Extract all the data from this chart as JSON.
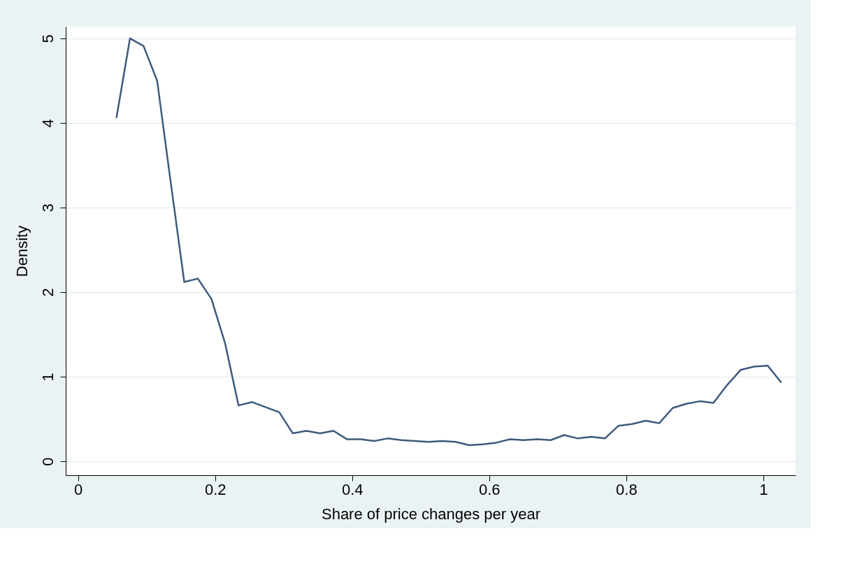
{
  "chart_data": {
    "type": "line",
    "xlabel": "Share of price changes per year",
    "ylabel": "Density",
    "x": [
      0.056,
      0.0758,
      0.0956,
      0.1154,
      0.1352,
      0.155,
      0.1748,
      0.1946,
      0.2144,
      0.2342,
      0.254,
      0.2738,
      0.2936,
      0.3134,
      0.3332,
      0.353,
      0.3728,
      0.3926,
      0.4124,
      0.4322,
      0.452,
      0.4718,
      0.4916,
      0.5114,
      0.5312,
      0.551,
      0.5708,
      0.5906,
      0.6104,
      0.6302,
      0.65,
      0.6698,
      0.6896,
      0.7094,
      0.7292,
      0.749,
      0.7688,
      0.7886,
      0.8084,
      0.8282,
      0.848,
      0.8678,
      0.8876,
      0.9074,
      0.9272,
      0.947,
      0.9668,
      0.9866,
      1.0064,
      1.0262
    ],
    "series": [
      {
        "color": "#3e5a7e",
        "values": [
          4.06,
          5.0,
          4.91,
          4.5,
          3.3,
          2.12,
          2.16,
          1.92,
          1.4,
          0.66,
          0.7,
          0.64,
          0.58,
          0.33,
          0.36,
          0.33,
          0.36,
          0.26,
          0.26,
          0.24,
          0.27,
          0.25,
          0.24,
          0.23,
          0.24,
          0.23,
          0.19,
          0.2,
          0.22,
          0.26,
          0.25,
          0.26,
          0.25,
          0.31,
          0.27,
          0.29,
          0.27,
          0.42,
          0.44,
          0.48,
          0.45,
          0.63,
          0.68,
          0.71,
          0.69,
          0.9,
          1.08,
          1.12,
          1.13,
          0.93
        ]
      }
    ],
    "xlim": [
      -0.018,
      1.047
    ],
    "ylim": [
      -0.165,
      5.14
    ],
    "xticks": [
      0,
      0.2,
      0.4,
      0.6,
      0.8,
      1
    ],
    "yticks": [
      0,
      1,
      2,
      3,
      4,
      5
    ],
    "grid": "y",
    "legend": false,
    "marker": "none",
    "line_style": "solid"
  }
}
